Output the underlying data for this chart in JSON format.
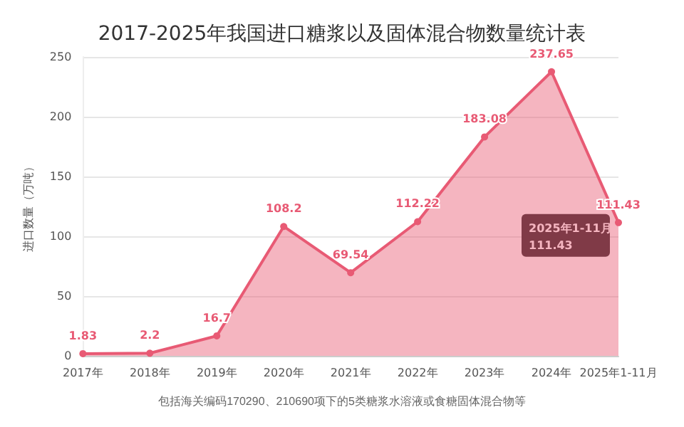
{
  "chart_data": {
    "type": "area",
    "title": "2017-2025年我国进口糖浆以及固体混合物数量统计表",
    "ylabel": "进口数量（万吨）",
    "categories": [
      "2017年",
      "2018年",
      "2019年",
      "2020年",
      "2021年",
      "2022年",
      "2023年",
      "2024年",
      "2025年1-11月"
    ],
    "series": [
      {
        "color": "#e85a74",
        "values": [
          1.83,
          2.2,
          16.7,
          108.2,
          69.54,
          112.22,
          183.08,
          237.65,
          111.43
        ]
      }
    ],
    "ylim": [
      0,
      250
    ],
    "yticks": [
      0,
      50,
      100,
      150,
      200,
      250
    ],
    "grid": "y",
    "data_labels": true,
    "marker": "circle",
    "annotations": [
      {
        "text": "2025年1-11月\n111.43",
        "x": "2025年1-11月",
        "y": 111.43
      },
      "包括海关编码170290、210690项下的5类糖浆水溶液或食糖固体混合物等"
    ]
  }
}
